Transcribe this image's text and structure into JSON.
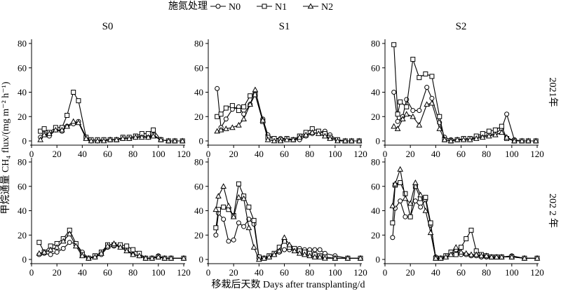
{
  "legend": {
    "title": "施氮处理",
    "entries": [
      {
        "label": "N0",
        "marker": "circle"
      },
      {
        "label": "N1",
        "marker": "square"
      },
      {
        "label": "N2",
        "marker": "triangle"
      }
    ]
  },
  "y_axis_label": "甲烷通量 CH₄ flux/(mg m⁻² h⁻¹)",
  "x_axis_label": "移栽后天数 Days after transplanting/d",
  "chart_data": {
    "type": "line",
    "layout": "2 rows × 3 columns, shared axes",
    "columns": [
      "S0",
      "S1",
      "S2"
    ],
    "rows": [
      "2021年",
      "202 2 年"
    ],
    "xlim": [
      0,
      120
    ],
    "ylim": [
      0,
      80
    ],
    "x_ticks": [
      0,
      20,
      40,
      60,
      80,
      100,
      120
    ],
    "y_ticks": [
      0,
      20,
      40,
      60,
      80
    ],
    "panels": [
      {
        "column": "S0",
        "row": "2021年",
        "series": [
          {
            "name": "N0",
            "x": [
              7,
              10,
              14,
              19,
              24,
              28,
              33,
              37,
              43,
              47,
              52,
              57,
              62,
              67,
              72,
              77,
              82,
              87,
              92,
              96,
              102,
              108,
              113,
              119
            ],
            "y": [
              3,
              6,
              4,
              9,
              8,
              12,
              14,
              16,
              3,
              0,
              0,
              1,
              1,
              1,
              2,
              2,
              3,
              4,
              3,
              5,
              1,
              0,
              0,
              0
            ]
          },
          {
            "name": "N1",
            "x": [
              7,
              10,
              14,
              19,
              24,
              28,
              33,
              37,
              43,
              47,
              52,
              57,
              62,
              67,
              72,
              77,
              82,
              87,
              92,
              96,
              102,
              108,
              113,
              119
            ],
            "y": [
              8,
              10,
              7,
              11,
              11,
              21,
              40,
              33,
              3,
              1,
              1,
              1,
              1,
              1,
              3,
              3,
              4,
              6,
              6,
              9,
              1,
              0,
              0,
              0
            ]
          },
          {
            "name": "N2",
            "x": [
              7,
              10,
              14,
              19,
              24,
              28,
              33,
              37,
              43,
              47,
              52,
              57,
              62,
              67,
              72,
              77,
              82,
              87,
              92,
              96,
              102,
              108,
              113,
              119
            ],
            "y": [
              1,
              5,
              6,
              9,
              9,
              12,
              16,
              15,
              2,
              0,
              0,
              0,
              1,
              1,
              2,
              2,
              3,
              3,
              3,
              4,
              1,
              0,
              0,
              0
            ]
          }
        ]
      },
      {
        "column": "S1",
        "row": "2021年",
        "series": [
          {
            "name": "N0",
            "x": [
              7,
              10,
              14,
              19,
              24,
              28,
              33,
              37,
              43,
              47,
              52,
              57,
              62,
              67,
              72,
              77,
              82,
              87,
              92,
              96,
              102,
              108,
              113,
              119
            ],
            "y": [
              43,
              11,
              18,
              26,
              28,
              22,
              30,
              38,
              18,
              5,
              2,
              2,
              2,
              1,
              1,
              4,
              6,
              7,
              8,
              5,
              1,
              0,
              0,
              0
            ]
          },
          {
            "name": "N1",
            "x": [
              7,
              10,
              14,
              19,
              24,
              28,
              33,
              37,
              43,
              47,
              52,
              57,
              62,
              67,
              72,
              77,
              82,
              87,
              92,
              96,
              102,
              108,
              113,
              119
            ],
            "y": [
              20,
              22,
              27,
              29,
              25,
              28,
              37,
              38,
              16,
              3,
              2,
              1,
              2,
              1,
              4,
              7,
              10,
              8,
              6,
              3,
              1,
              0,
              0,
              0
            ]
          },
          {
            "name": "N2",
            "x": [
              7,
              10,
              14,
              19,
              24,
              28,
              33,
              37,
              43,
              47,
              52,
              57,
              62,
              67,
              72,
              77,
              82,
              87,
              92,
              96,
              102,
              108,
              113,
              119
            ],
            "y": [
              8,
              9,
              10,
              11,
              13,
              18,
              30,
              42,
              17,
              1,
              0,
              0,
              1,
              1,
              3,
              5,
              7,
              6,
              4,
              2,
              0,
              0,
              0,
              0
            ]
          }
        ]
      },
      {
        "column": "S2",
        "row": "2021年",
        "series": [
          {
            "name": "N0",
            "x": [
              7,
              10,
              14,
              17,
              22,
              27,
              33,
              37,
              43,
              47,
              52,
              57,
              62,
              67,
              72,
              77,
              82,
              87,
              92,
              96,
              102,
              108,
              113,
              119
            ],
            "y": [
              40,
              16,
              20,
              34,
              25,
              25,
              44,
              35,
              15,
              3,
              1,
              1,
              1,
              1,
              3,
              4,
              5,
              6,
              10,
              22,
              1,
              0,
              0,
              0
            ]
          },
          {
            "name": "N1",
            "x": [
              7,
              10,
              12,
              17,
              22,
              27,
              32,
              37,
              43,
              47,
              52,
              57,
              62,
              67,
              72,
              77,
              82,
              87,
              92,
              96,
              102,
              108,
              113,
              119
            ],
            "y": [
              79,
              22,
              32,
              28,
              67,
              52,
              55,
              53,
              20,
              1,
              0,
              1,
              2,
              2,
              4,
              6,
              8,
              9,
              12,
              2,
              0,
              0,
              0,
              0
            ]
          },
          {
            "name": "N2",
            "x": [
              7,
              10,
              14,
              17,
              22,
              27,
              33,
              37,
              43,
              47,
              52,
              57,
              62,
              67,
              72,
              77,
              82,
              87,
              92,
              96,
              102,
              108,
              113,
              119
            ],
            "y": [
              12,
              10,
              18,
              22,
              20,
              13,
              30,
              31,
              10,
              1,
              0,
              1,
              1,
              1,
              2,
              3,
              4,
              5,
              7,
              3,
              0,
              0,
              0,
              0
            ]
          }
        ]
      },
      {
        "column": "S0",
        "row": "202 2 年",
        "series": [
          {
            "name": "N0",
            "x": [
              6,
              10,
              15,
              20,
              25,
              30,
              35,
              40,
              45,
              50,
              55,
              60,
              65,
              70,
              75,
              80,
              85,
              90,
              95,
              100,
              105,
              110,
              120
            ],
            "y": [
              4,
              5,
              4,
              6,
              9,
              14,
              13,
              6,
              1,
              2,
              4,
              10,
              11,
              11,
              8,
              4,
              3,
              1,
              1,
              3,
              1,
              1,
              1
            ]
          },
          {
            "name": "N1",
            "x": [
              6,
              10,
              15,
              20,
              25,
              30,
              35,
              40,
              45,
              50,
              55,
              60,
              65,
              70,
              75,
              80,
              85,
              90,
              95,
              100,
              105,
              110,
              120
            ],
            "y": [
              14,
              6,
              11,
              13,
              17,
              24,
              13,
              4,
              1,
              3,
              6,
              12,
              12,
              12,
              11,
              8,
              5,
              1,
              1,
              2,
              1,
              1,
              1
            ]
          },
          {
            "name": "N2",
            "x": [
              6,
              10,
              15,
              20,
              25,
              30,
              35,
              40,
              45,
              50,
              55,
              60,
              65,
              70,
              75,
              80,
              85,
              90,
              95,
              100,
              105,
              110,
              120
            ],
            "y": [
              5,
              6,
              8,
              10,
              15,
              21,
              11,
              3,
              1,
              2,
              5,
              11,
              13,
              10,
              7,
              4,
              3,
              1,
              1,
              2,
              1,
              1,
              1
            ]
          }
        ]
      },
      {
        "column": "S1",
        "row": "202 2 年",
        "series": [
          {
            "name": "N0",
            "x": [
              6,
              8,
              12,
              16,
              20,
              24,
              28,
              32,
              36,
              40,
              44,
              48,
              52,
              56,
              60,
              64,
              68,
              72,
              76,
              80,
              84,
              88,
              92,
              100,
              110,
              120
            ],
            "y": [
              20,
              38,
              33,
              15,
              16,
              30,
              27,
              33,
              29,
              1,
              1,
              2,
              4,
              6,
              8,
              8,
              8,
              9,
              8,
              8,
              8,
              8,
              5,
              3,
              1,
              1
            ]
          },
          {
            "name": "N1",
            "x": [
              6,
              8,
              12,
              16,
              20,
              24,
              28,
              32,
              36,
              40,
              44,
              48,
              52,
              56,
              60,
              64,
              68,
              72,
              76,
              80,
              84,
              88,
              92,
              100,
              110,
              120
            ],
            "y": [
              26,
              41,
              43,
              41,
              36,
              62,
              52,
              43,
              32,
              2,
              1,
              3,
              5,
              10,
              15,
              10,
              9,
              7,
              6,
              5,
              4,
              3,
              2,
              1,
              1,
              1
            ]
          },
          {
            "name": "N2",
            "x": [
              6,
              8,
              12,
              16,
              20,
              24,
              28,
              32,
              36,
              40,
              44,
              48,
              52,
              56,
              60,
              64,
              68,
              72,
              76,
              80,
              84,
              88,
              92,
              100,
              110,
              120
            ],
            "y": [
              41,
              52,
              60,
              44,
              35,
              51,
              50,
              26,
              10,
              0,
              1,
              2,
              4,
              7,
              18,
              12,
              7,
              5,
              4,
              3,
              2,
              2,
              1,
              1,
              1,
              1
            ]
          }
        ]
      },
      {
        "column": "S2",
        "row": "202 2 年",
        "series": [
          {
            "name": "N0",
            "x": [
              6,
              8,
              12,
              16,
              20,
              24,
              28,
              32,
              36,
              40,
              44,
              48,
              52,
              56,
              60,
              64,
              68,
              72,
              76,
              80,
              84,
              88,
              92,
              100,
              110,
              120
            ],
            "y": [
              18,
              42,
              48,
              35,
              35,
              48,
              43,
              49,
              28,
              2,
              1,
              3,
              6,
              8,
              4,
              4,
              3,
              3,
              2,
              2,
              2,
              2,
              2,
              3,
              1,
              1
            ]
          },
          {
            "name": "N1",
            "x": [
              6,
              8,
              12,
              16,
              20,
              24,
              28,
              32,
              36,
              40,
              44,
              48,
              52,
              56,
              60,
              64,
              68,
              72,
              76,
              80,
              84,
              88,
              92,
              100,
              110,
              120
            ],
            "y": [
              30,
              61,
              63,
              54,
              35,
              60,
              50,
              51,
              30,
              1,
              1,
              3,
              6,
              4,
              10,
              17,
              24,
              7,
              4,
              3,
              2,
              2,
              2,
              2,
              1,
              1
            ]
          },
          {
            "name": "N2",
            "x": [
              6,
              8,
              12,
              16,
              20,
              24,
              28,
              32,
              36,
              40,
              44,
              48,
              52,
              56,
              60,
              64,
              68,
              72,
              76,
              80,
              84,
              88,
              92,
              100,
              110,
              120
            ],
            "y": [
              44,
              62,
              74,
              50,
              46,
              63,
              53,
              40,
              22,
              1,
              1,
              2,
              4,
              10,
              6,
              5,
              4,
              4,
              3,
              3,
              2,
              2,
              2,
              2,
              1,
              1
            ]
          }
        ]
      }
    ]
  }
}
